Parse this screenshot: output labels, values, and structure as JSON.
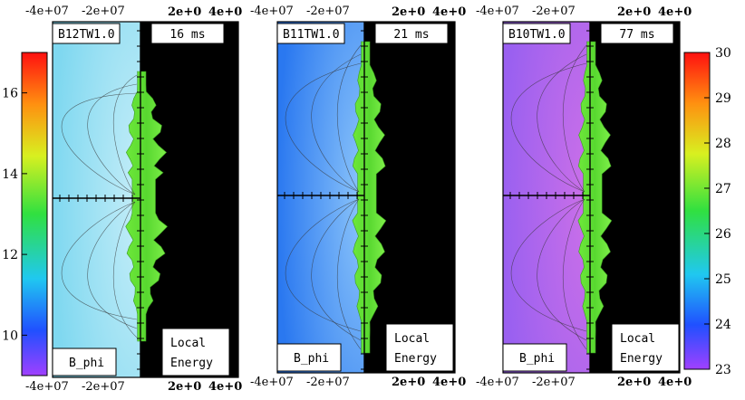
{
  "chart_data": [
    {
      "type": "heatmap",
      "model_label": "B12TW1.0",
      "time_label": "16 ms",
      "left_quantity_label": "B_phi",
      "right_quantity_label": "Local\nEnergy",
      "x_tick_labels_top": [
        "-4e+07",
        "-2e+07",
        "2e+0",
        "4e+0"
      ],
      "x_tick_labels_bottom": [
        "-4e+07",
        "-2e+07",
        "2e+0",
        "4e+0"
      ],
      "colorbar": {
        "ticks": [
          10,
          12,
          14,
          16
        ],
        "range": [
          9,
          17
        ],
        "position": "left"
      },
      "left_background": "#7fd8f0",
      "jet_extent": "short"
    },
    {
      "type": "heatmap",
      "model_label": "B11TW1.0",
      "time_label": "21 ms",
      "left_quantity_label": "B_phi",
      "right_quantity_label": "Local\nEnergy",
      "x_tick_labels_top": [
        "-4e+07",
        "-2e+07",
        "2e+0",
        "4e+0"
      ],
      "x_tick_labels_bottom": [
        "-4e+07",
        "-2e+07",
        "2e+0",
        "4e+0"
      ],
      "left_background": "#2a78f0",
      "jet_extent": "full"
    },
    {
      "type": "heatmap",
      "model_label": "B10TW1.0",
      "time_label": "77 ms",
      "left_quantity_label": "B_phi",
      "right_quantity_label": "Local\nEnergy",
      "x_tick_labels_top": [
        "-4e+07",
        "-2e+07",
        "2e+0",
        "4e+0"
      ],
      "x_tick_labels_bottom": [
        "-4e+07",
        "-2e+07",
        "2e+0",
        "4e+0"
      ],
      "colorbar": {
        "ticks": [
          23,
          24,
          25,
          26,
          27,
          28,
          29,
          30
        ],
        "range": [
          23,
          30
        ],
        "position": "right"
      },
      "left_background": "#9a60f0",
      "jet_extent": "full"
    }
  ]
}
